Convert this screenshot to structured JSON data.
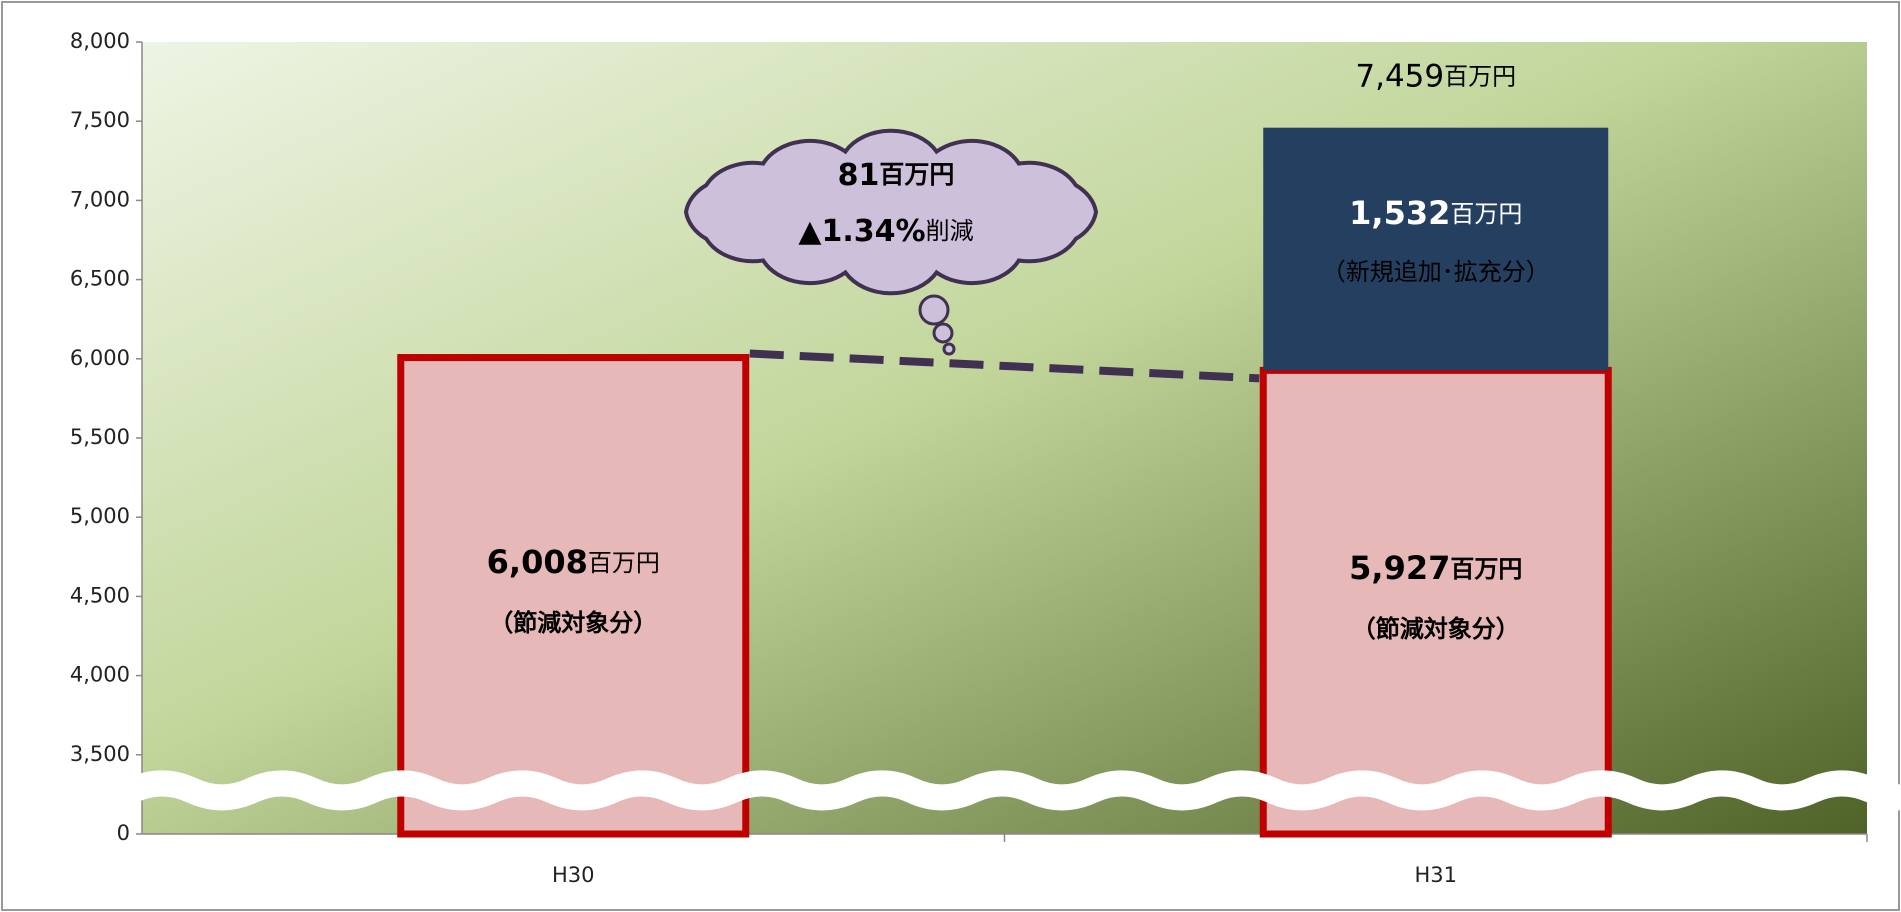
{
  "chart_data": {
    "type": "stacked-bar",
    "categories": [
      "H30",
      "H31"
    ],
    "unit": "百万円",
    "series": [
      {
        "name": "（節減対象分）",
        "color": "#e6b8b7",
        "border": "#c00000",
        "values": [
          6008,
          5927
        ],
        "value_labels": [
          "6,008",
          "5,927"
        ]
      },
      {
        "name": "（新規追加･拡充分）",
        "color": "#243f60",
        "values": [
          null,
          1532
        ],
        "value_labels": [
          null,
          "1,532"
        ]
      }
    ],
    "total": 7459,
    "total_label": "7,459",
    "callout": {
      "amount_label": "81",
      "rate_label": "▲1.34%",
      "rate_suffix": "削減"
    },
    "ylim": [
      0,
      8000
    ],
    "yticks": [
      0,
      {
        "value": 3500,
        "label": "3,500"
      },
      {
        "value": 4000,
        "label": "4,000"
      },
      {
        "value": 4500,
        "label": "4,500"
      },
      {
        "value": 5000,
        "label": "5,000"
      },
      {
        "value": 5500,
        "label": "5,500"
      },
      {
        "value": 6000,
        "label": "6,000"
      },
      {
        "value": 6500,
        "label": "6,500"
      },
      {
        "value": 7000,
        "label": "7,000"
      },
      {
        "value": 7500,
        "label": "7,500"
      },
      {
        "value": 8000,
        "label": "8,000"
      }
    ],
    "axis_break": true
  }
}
